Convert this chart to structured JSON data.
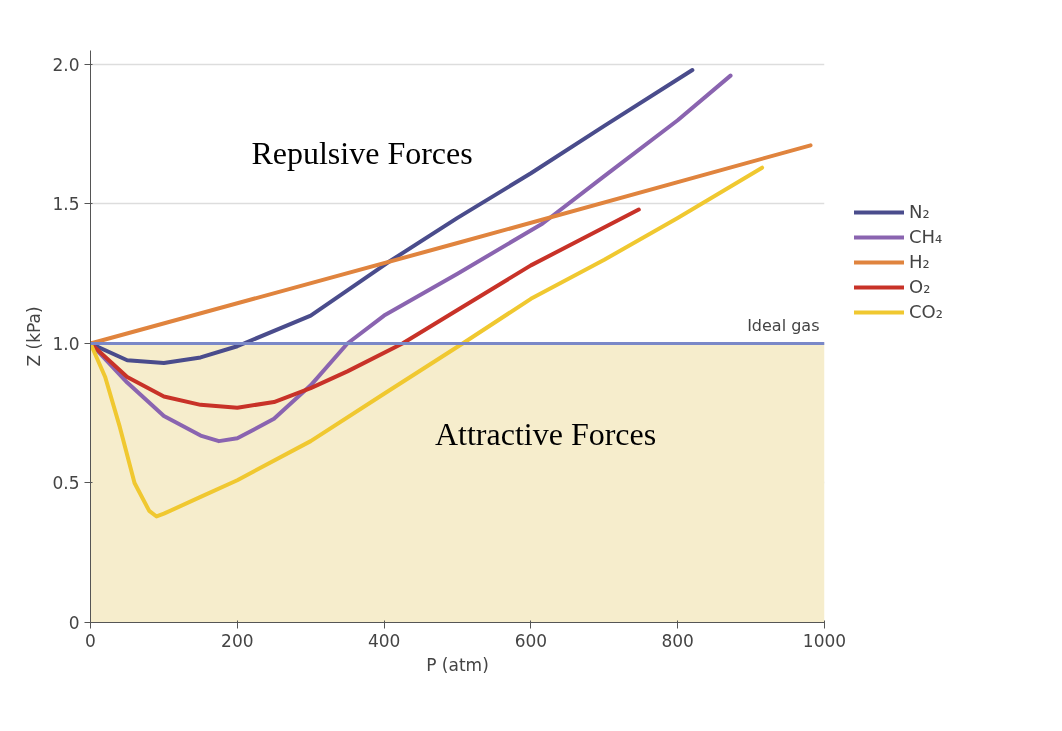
{
  "chart_data": {
    "type": "line",
    "xlabel": "P (atm)",
    "ylabel": "Z (kPa)",
    "xlim": [
      0,
      1000
    ],
    "ylim": [
      0,
      2.05
    ],
    "xticks": [
      0,
      200,
      400,
      600,
      800,
      1000
    ],
    "yticks": [
      0,
      0.5,
      {
        "value": 1,
        "label": "1.0"
      },
      1.5,
      {
        "value": 2,
        "label": "2.0"
      }
    ],
    "grid": "y",
    "legend": "right",
    "marker": "none",
    "line_style": "solid",
    "series": [
      {
        "name": "N₂",
        "color": "#4a4c8c",
        "x": [
          0,
          50,
          100,
          150,
          200,
          300,
          405,
          500,
          600,
          700,
          820
        ],
        "values": [
          1.0,
          0.94,
          0.93,
          0.95,
          0.99,
          1.1,
          1.29,
          1.45,
          1.61,
          1.78,
          1.98
        ]
      },
      {
        "name": "CH₄",
        "color": "#8a64b0",
        "x": [
          0,
          50,
          100,
          150,
          175,
          200,
          250,
          300,
          350,
          400,
          500,
          616,
          700,
          800,
          872
        ],
        "values": [
          1.0,
          0.86,
          0.74,
          0.67,
          0.65,
          0.66,
          0.73,
          0.85,
          1.0,
          1.1,
          1.25,
          1.43,
          1.6,
          1.8,
          1.96
        ]
      },
      {
        "name": "H₂",
        "color": "#e0843e",
        "x": [
          0,
          500,
          981
        ],
        "values": [
          1.0,
          1.36,
          1.71
        ]
      },
      {
        "name": "O₂",
        "color": "#c83228",
        "x": [
          0,
          50,
          100,
          150,
          200,
          250,
          300,
          350,
          425,
          500,
          600,
          747
        ],
        "values": [
          1.0,
          0.88,
          0.81,
          0.78,
          0.77,
          0.79,
          0.84,
          0.9,
          1.0,
          1.12,
          1.28,
          1.48
        ]
      },
      {
        "name": "CO₂",
        "color": "#f0c830",
        "x": [
          0,
          20,
          40,
          60,
          80,
          90,
          100,
          150,
          200,
          300,
          400,
          507,
          600,
          700,
          800,
          915
        ],
        "values": [
          1.0,
          0.88,
          0.7,
          0.5,
          0.4,
          0.38,
          0.39,
          0.45,
          0.51,
          0.65,
          0.82,
          1.0,
          1.16,
          1.3,
          1.45,
          1.63
        ]
      }
    ],
    "ref_lines": [
      {
        "axis": "y",
        "value": 1,
        "label": "Ideal gas",
        "color": "#7a88c8"
      }
    ],
    "bands": [
      {
        "axis": "y",
        "from": 0,
        "to": 1,
        "color": "#f6edcc"
      }
    ],
    "annotations": [
      "Repulsive Forces",
      "Attractive Forces"
    ]
  }
}
